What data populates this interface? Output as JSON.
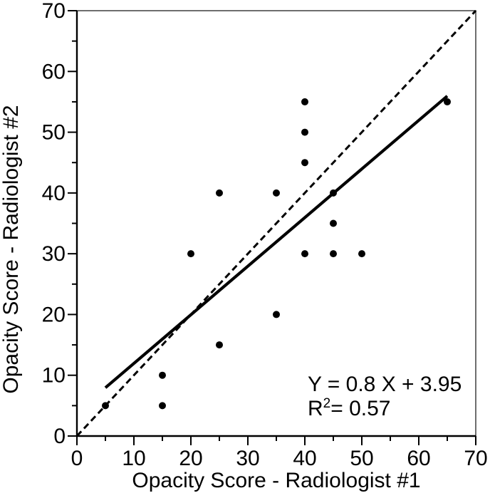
{
  "chart_data": {
    "type": "scatter",
    "title": "",
    "xlabel": "Opacity Score - Radiologist #1",
    "ylabel": "Opacity Score - Radiologist #2",
    "xlim": [
      0,
      70
    ],
    "ylim": [
      0,
      70
    ],
    "x_major_ticks": [
      0,
      10,
      20,
      30,
      40,
      50,
      60,
      70
    ],
    "y_major_ticks": [
      0,
      10,
      20,
      30,
      40,
      50,
      60,
      70
    ],
    "minor_tick_step": 5,
    "grid": false,
    "legend_position": "none",
    "points": [
      [
        5,
        5
      ],
      [
        15,
        5
      ],
      [
        15,
        10
      ],
      [
        25,
        15
      ],
      [
        35,
        20
      ],
      [
        20,
        30
      ],
      [
        40,
        30
      ],
      [
        45,
        30
      ],
      [
        50,
        30
      ],
      [
        45,
        35
      ],
      [
        25,
        40
      ],
      [
        35,
        40
      ],
      [
        45,
        40
      ],
      [
        40,
        45
      ],
      [
        40,
        50
      ],
      [
        40,
        55
      ],
      [
        65,
        55
      ]
    ],
    "regression_line": {
      "slope": 0.8,
      "intercept": 3.95,
      "x_start": 5,
      "x_end": 65,
      "style": "solid"
    },
    "identity_line": {
      "slope": 1,
      "intercept": 0,
      "x_start": 0,
      "x_end": 70,
      "style": "dashed"
    },
    "annotation": {
      "equation": "Y = 0.8 X + 3.95",
      "r2_base": "R",
      "r2_sup": "2",
      "r2_rest": "= 0.57"
    },
    "colors": {
      "marker": "#000000",
      "line": "#000000",
      "text": "#000000",
      "frame": "#4a4a4a",
      "background": "#ffffff"
    }
  }
}
